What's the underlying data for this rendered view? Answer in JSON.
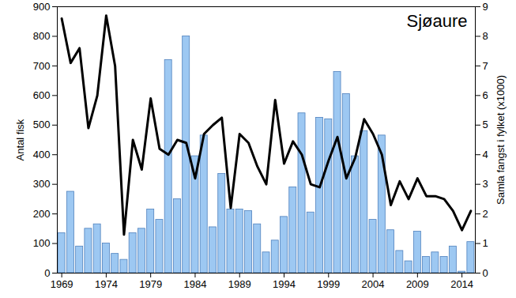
{
  "chart_data": {
    "type": "bar",
    "title": "Sjøaure",
    "ylabel": "Antal fisk",
    "y2label": "Samla fangst i fylket (x1000)",
    "x": [
      1969,
      1970,
      1971,
      1972,
      1973,
      1974,
      1975,
      1976,
      1977,
      1978,
      1979,
      1980,
      1981,
      1982,
      1983,
      1984,
      1985,
      1986,
      1987,
      1988,
      1989,
      1990,
      1991,
      1992,
      1993,
      1994,
      1995,
      1996,
      1997,
      1998,
      1999,
      2000,
      2001,
      2002,
      2003,
      2004,
      2005,
      2006,
      2007,
      2008,
      2009,
      2010,
      2011,
      2012,
      2013,
      2014,
      2015
    ],
    "series": [
      {
        "type": "bar",
        "color": "#9dc8f2",
        "values": [
          135,
          275,
          90,
          150,
          165,
          100,
          65,
          45,
          135,
          150,
          215,
          180,
          720,
          250,
          800,
          395,
          465,
          155,
          335,
          215,
          215,
          210,
          165,
          70,
          110,
          190,
          290,
          540,
          205,
          525,
          520,
          680,
          605,
          395,
          480,
          180,
          465,
          145,
          75,
          40,
          140,
          55,
          70,
          55,
          90,
          5,
          105
        ]
      },
      {
        "type": "line",
        "color": "#000000",
        "axis": "y2",
        "values": [
          8.6,
          7.1,
          7.6,
          4.9,
          6.0,
          8.7,
          7.0,
          1.3,
          4.5,
          3.5,
          5.9,
          4.2,
          4.0,
          4.5,
          4.4,
          3.2,
          4.7,
          5.0,
          5.25,
          2.2,
          4.7,
          4.4,
          3.6,
          3.0,
          5.85,
          3.7,
          4.45,
          4.0,
          3.0,
          2.9,
          3.8,
          4.6,
          3.2,
          3.9,
          5.2,
          4.7,
          4.0,
          2.3,
          3.1,
          2.5,
          3.2,
          2.6,
          2.6,
          2.5,
          2.1,
          1.45,
          2.1
        ]
      }
    ],
    "xlim": [
      1968.5,
      2015.5
    ],
    "xticks": [
      1969,
      1974,
      1979,
      1984,
      1989,
      1994,
      1999,
      2004,
      2009,
      2014
    ],
    "ylim": [
      0,
      900
    ],
    "yticks": [
      0,
      100,
      200,
      300,
      400,
      500,
      600,
      700,
      800,
      900
    ],
    "y2lim": [
      0,
      9
    ],
    "y2ticks": [
      0,
      1,
      2,
      3,
      4,
      5,
      6,
      7,
      8,
      9
    ],
    "grid": false
  }
}
